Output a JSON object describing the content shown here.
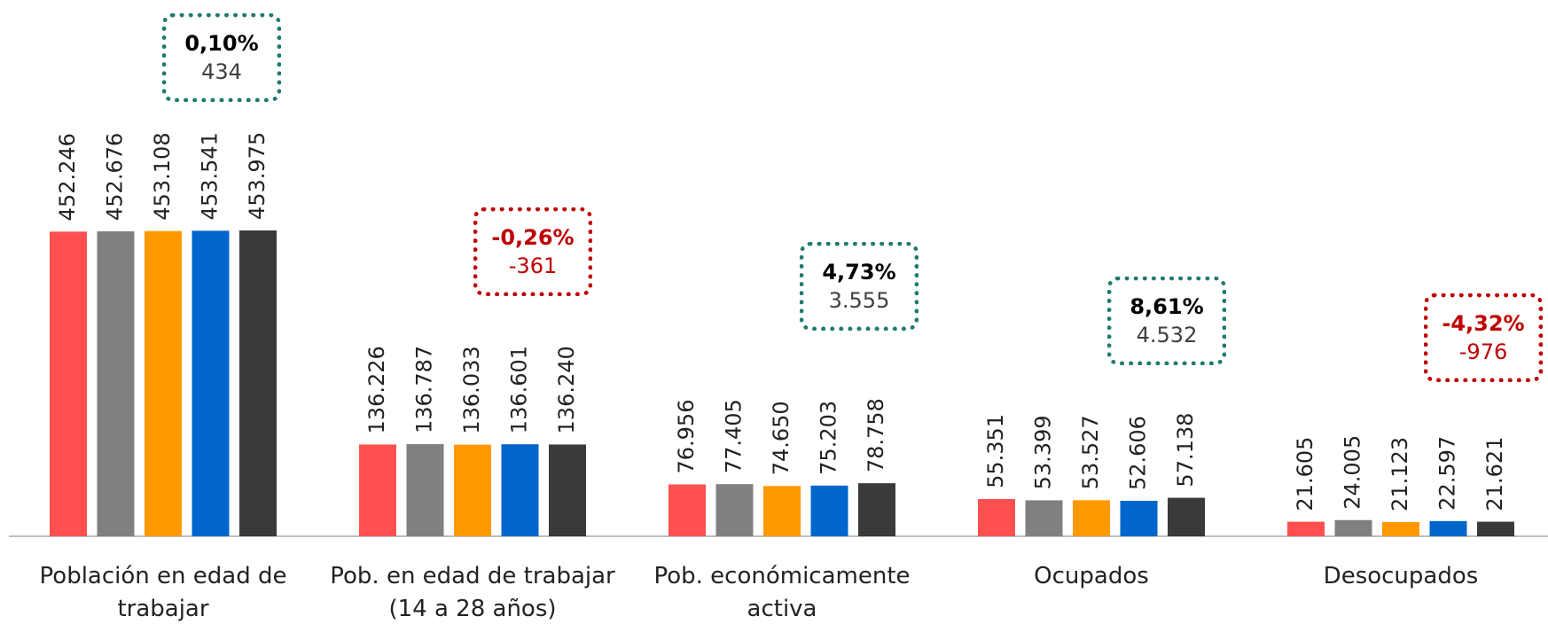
{
  "chart_data": {
    "type": "bar",
    "categories": [
      "Población en edad de trabajar",
      "Pob. en edad de trabajar (14 a 28 años)",
      "Pob. económicamente activa",
      "Ocupados",
      "Desocupados"
    ],
    "series": [
      {
        "color": "#ff5050",
        "values": [
          452246,
          136226,
          76956,
          55351,
          21605
        ],
        "value_labels": [
          "452.246",
          "136.226",
          "76.956",
          "55.351",
          "21.605"
        ]
      },
      {
        "color": "#808080",
        "values": [
          452676,
          136787,
          77405,
          53399,
          24005
        ],
        "value_labels": [
          "452.676",
          "136.787",
          "77.405",
          "53.399",
          "24.005"
        ]
      },
      {
        "color": "#ff9900",
        "values": [
          453108,
          136033,
          74650,
          53527,
          21123
        ],
        "value_labels": [
          "453.108",
          "136.033",
          "74.650",
          "53.527",
          "21.123"
        ]
      },
      {
        "color": "#0066cc",
        "values": [
          453541,
          136601,
          75203,
          52606,
          22597
        ],
        "value_labels": [
          "453.541",
          "136.601",
          "75.203",
          "52.606",
          "22.597"
        ]
      },
      {
        "color": "#3a3a3a",
        "values": [
          453975,
          136240,
          78758,
          57138,
          21621
        ],
        "value_labels": [
          "453.975",
          "136.240",
          "78.758",
          "57.138",
          "21.621"
        ]
      }
    ],
    "annotations": [
      {
        "percent": "0,10%",
        "change": "434",
        "color": "#1f7a70",
        "text_color": "#000000",
        "change_color": "#404040"
      },
      {
        "percent": "-0,26%",
        "change": "-361",
        "color": "#c00000",
        "text_color": "#c00000",
        "change_color": "#c00000"
      },
      {
        "percent": "4,73%",
        "change": "3.555",
        "color": "#1f7a70",
        "text_color": "#000000",
        "change_color": "#404040"
      },
      {
        "percent": "8,61%",
        "change": "4.532",
        "color": "#1f7a70",
        "text_color": "#000000",
        "change_color": "#404040"
      },
      {
        "percent": "-4,32%",
        "change": "-976",
        "color": "#c00000",
        "text_color": "#c00000",
        "change_color": "#c00000"
      }
    ]
  }
}
